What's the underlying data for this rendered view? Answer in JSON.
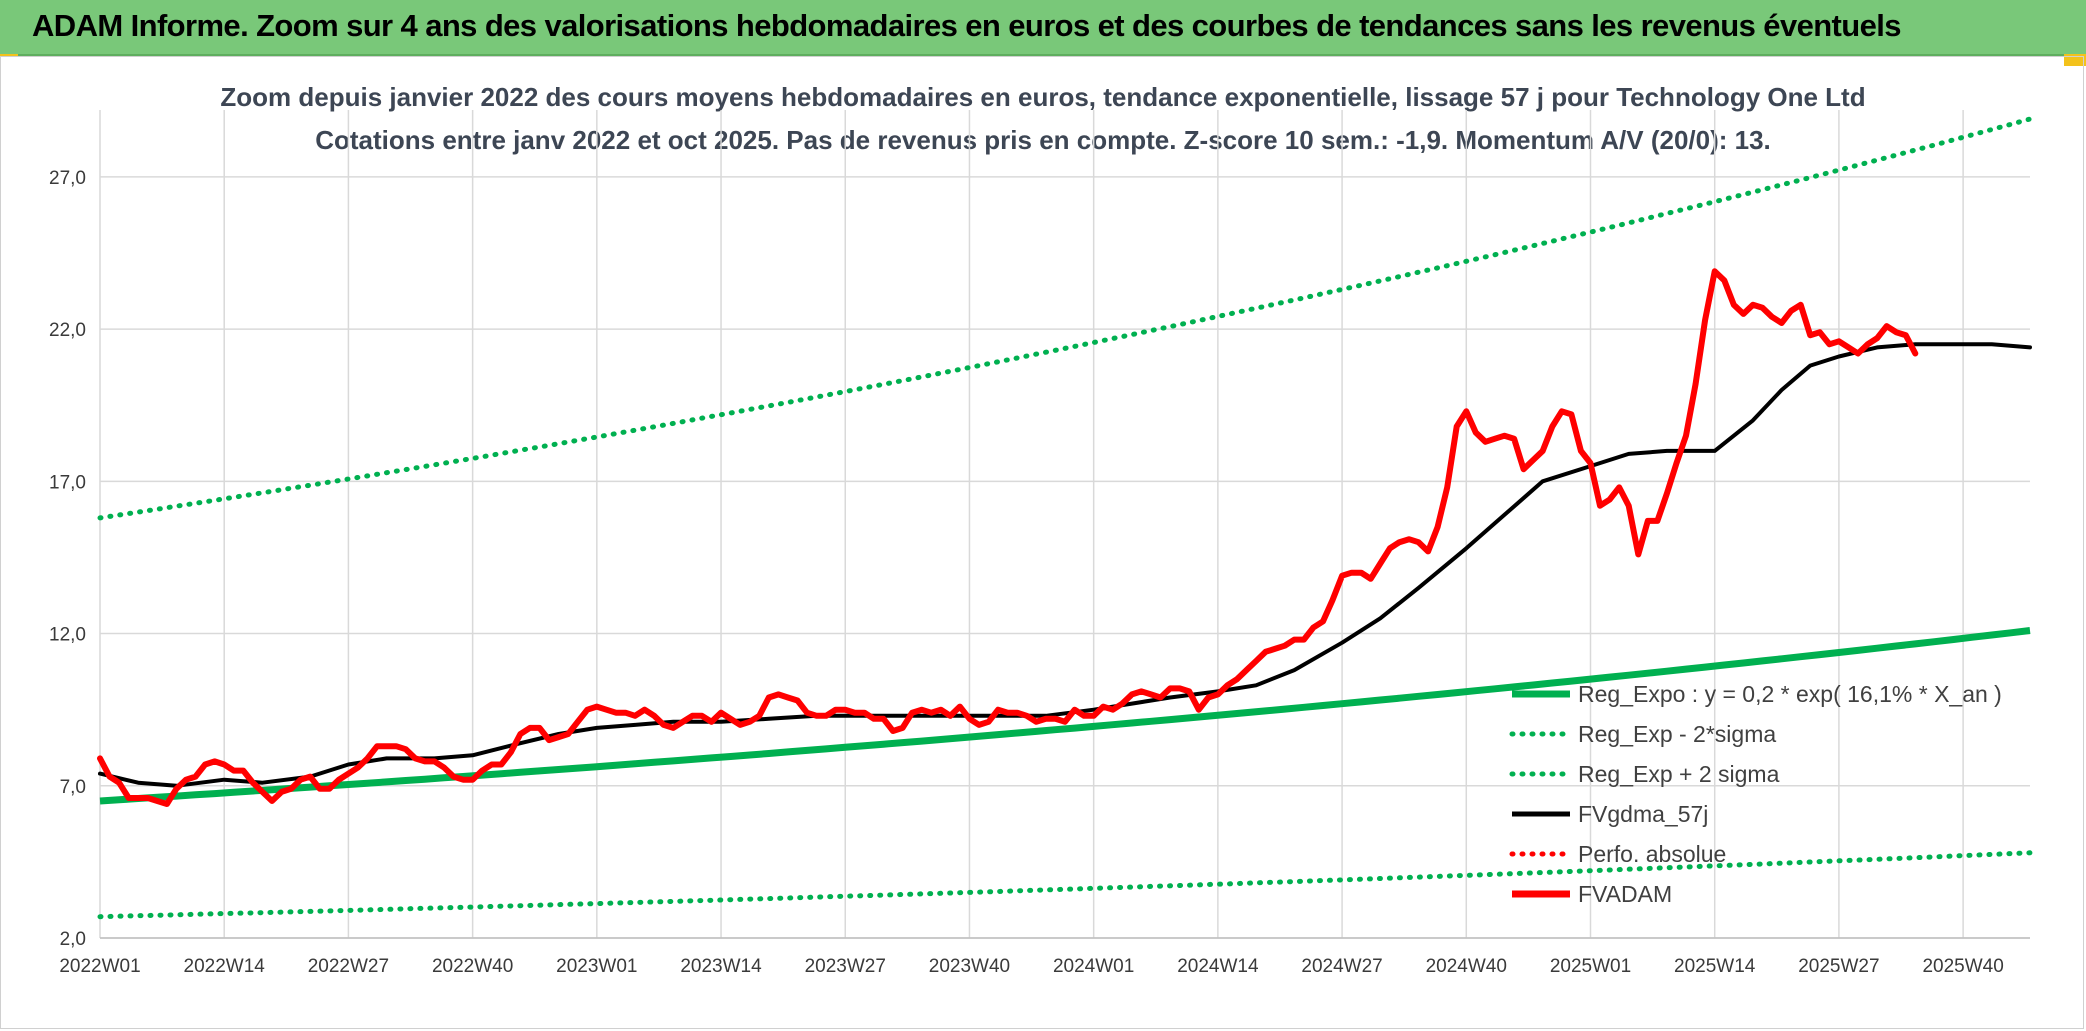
{
  "banner": {
    "title": "ADAM Informe. Zoom sur 4 ans des valorisations hebdomadaires en euros et des courbes de tendances sans les revenus éventuels"
  },
  "colors": {
    "banner_bg": "#79c879",
    "trend": "#00b050",
    "price": "#ff0000",
    "moving_avg": "#000000"
  },
  "chart_data": {
    "type": "line",
    "subtitle_line1": "Zoom depuis janvier 2022 des cours moyens hebdomadaires en euros, tendance exponentielle, lissage 57 j pour Technology One Ltd",
    "subtitle_line2": "Cotations entre janv 2022 et oct 2025. Pas de revenus pris en compte. Z-score 10 sem.: -1,9. Momentum A/V (20/0): 13.",
    "ylim": [
      2.0,
      29.0
    ],
    "y_ticks": [
      "2,0",
      "7,0",
      "12,0",
      "17,0",
      "22,0",
      "27,0"
    ],
    "y_tick_values": [
      2,
      7,
      12,
      17,
      22,
      27
    ],
    "x_tick_labels": [
      "2022W01",
      "2022W14",
      "2022W27",
      "2022W40",
      "2023W01",
      "2023W14",
      "2023W27",
      "2023W40",
      "2024W01",
      "2024W14",
      "2024W27",
      "2024W40",
      "2025W01",
      "2025W14",
      "2025W27",
      "2025W40"
    ],
    "x_tick_weeks": [
      0,
      13,
      26,
      39,
      52,
      65,
      78,
      91,
      104,
      117,
      130,
      143,
      156,
      169,
      182,
      195
    ],
    "x_range_weeks": [
      0,
      202
    ],
    "grid": true,
    "legend_position": "right-lower",
    "legend": [
      {
        "label": "Reg_Expo : y = 0,2 * exp( 16,1% *  X_an )",
        "style": "thick-solid",
        "color": "#00b050"
      },
      {
        "label": "Reg_Exp - 2*sigma",
        "style": "dotted",
        "color": "#00b050"
      },
      {
        "label": "Reg_Exp + 2 sigma",
        "style": "dotted",
        "color": "#00b050"
      },
      {
        "label": "FVgdma_57j",
        "style": "solid",
        "color": "#000000"
      },
      {
        "label": "Perfo. absolue",
        "style": "dotted",
        "color": "#ff0000"
      },
      {
        "label": "FVADAM",
        "style": "thick-solid",
        "color": "#ff0000"
      }
    ],
    "series": [
      {
        "name": "Reg_Expo : y = 0,2 * exp( 16,1% *  X_an )",
        "points": [
          [
            0,
            6.5
          ],
          [
            202,
            12.1
          ]
        ]
      },
      {
        "name": "Reg_Exp - 2*sigma",
        "points": [
          [
            0,
            2.7
          ],
          [
            202,
            4.8
          ]
        ]
      },
      {
        "name": "Reg_Exp + 2 sigma",
        "points": [
          [
            0,
            15.8
          ],
          [
            202,
            28.9
          ]
        ]
      },
      {
        "name": "FVgdma_57j",
        "points": [
          [
            0,
            7.4
          ],
          [
            4,
            7.1
          ],
          [
            8,
            7.0
          ],
          [
            13,
            7.2
          ],
          [
            17,
            7.1
          ],
          [
            22,
            7.3
          ],
          [
            26,
            7.7
          ],
          [
            30,
            7.9
          ],
          [
            35,
            7.9
          ],
          [
            39,
            8.0
          ],
          [
            44,
            8.4
          ],
          [
            48,
            8.7
          ],
          [
            52,
            8.9
          ],
          [
            56,
            9.0
          ],
          [
            60,
            9.1
          ],
          [
            65,
            9.1
          ],
          [
            70,
            9.2
          ],
          [
            75,
            9.3
          ],
          [
            78,
            9.3
          ],
          [
            82,
            9.3
          ],
          [
            86,
            9.3
          ],
          [
            91,
            9.3
          ],
          [
            95,
            9.3
          ],
          [
            99,
            9.3
          ],
          [
            104,
            9.5
          ],
          [
            108,
            9.7
          ],
          [
            112,
            9.9
          ],
          [
            117,
            10.1
          ],
          [
            121,
            10.3
          ],
          [
            125,
            10.8
          ],
          [
            130,
            11.7
          ],
          [
            134,
            12.5
          ],
          [
            138,
            13.5
          ],
          [
            143,
            14.8
          ],
          [
            147,
            15.9
          ],
          [
            151,
            17.0
          ],
          [
            156,
            17.5
          ],
          [
            160,
            17.9
          ],
          [
            164,
            18.0
          ],
          [
            169,
            18.0
          ],
          [
            173,
            19.0
          ],
          [
            176,
            20.0
          ],
          [
            179,
            20.8
          ],
          [
            182,
            21.1
          ],
          [
            186,
            21.4
          ],
          [
            190,
            21.5
          ],
          [
            194,
            21.5
          ],
          [
            198,
            21.5
          ],
          [
            202,
            21.4
          ]
        ]
      },
      {
        "name": "FVADAM",
        "points": [
          [
            0,
            7.9
          ],
          [
            1,
            7.3
          ],
          [
            2,
            7.1
          ],
          [
            3,
            6.6
          ],
          [
            4,
            6.6
          ],
          [
            5,
            6.6
          ],
          [
            6,
            6.5
          ],
          [
            7,
            6.4
          ],
          [
            8,
            6.9
          ],
          [
            9,
            7.2
          ],
          [
            10,
            7.3
          ],
          [
            11,
            7.7
          ],
          [
            12,
            7.8
          ],
          [
            13,
            7.7
          ],
          [
            14,
            7.5
          ],
          [
            15,
            7.5
          ],
          [
            16,
            7.1
          ],
          [
            17,
            6.8
          ],
          [
            18,
            6.5
          ],
          [
            19,
            6.8
          ],
          [
            20,
            6.9
          ],
          [
            21,
            7.2
          ],
          [
            22,
            7.3
          ],
          [
            23,
            6.9
          ],
          [
            24,
            6.9
          ],
          [
            25,
            7.2
          ],
          [
            26,
            7.4
          ],
          [
            27,
            7.6
          ],
          [
            28,
            7.9
          ],
          [
            29,
            8.3
          ],
          [
            30,
            8.3
          ],
          [
            31,
            8.3
          ],
          [
            32,
            8.2
          ],
          [
            33,
            7.9
          ],
          [
            34,
            7.8
          ],
          [
            35,
            7.8
          ],
          [
            36,
            7.6
          ],
          [
            37,
            7.3
          ],
          [
            38,
            7.2
          ],
          [
            39,
            7.2
          ],
          [
            40,
            7.5
          ],
          [
            41,
            7.7
          ],
          [
            42,
            7.7
          ],
          [
            43,
            8.1
          ],
          [
            44,
            8.7
          ],
          [
            45,
            8.9
          ],
          [
            46,
            8.9
          ],
          [
            47,
            8.5
          ],
          [
            48,
            8.6
          ],
          [
            49,
            8.7
          ],
          [
            50,
            9.1
          ],
          [
            51,
            9.5
          ],
          [
            52,
            9.6
          ],
          [
            53,
            9.5
          ],
          [
            54,
            9.4
          ],
          [
            55,
            9.4
          ],
          [
            56,
            9.3
          ],
          [
            57,
            9.5
          ],
          [
            58,
            9.3
          ],
          [
            59,
            9.0
          ],
          [
            60,
            8.9
          ],
          [
            61,
            9.1
          ],
          [
            62,
            9.3
          ],
          [
            63,
            9.3
          ],
          [
            64,
            9.1
          ],
          [
            65,
            9.4
          ],
          [
            66,
            9.2
          ],
          [
            67,
            9.0
          ],
          [
            68,
            9.1
          ],
          [
            69,
            9.3
          ],
          [
            70,
            9.9
          ],
          [
            71,
            10.0
          ],
          [
            72,
            9.9
          ],
          [
            73,
            9.8
          ],
          [
            74,
            9.4
          ],
          [
            75,
            9.3
          ],
          [
            76,
            9.3
          ],
          [
            77,
            9.5
          ],
          [
            78,
            9.5
          ],
          [
            79,
            9.4
          ],
          [
            80,
            9.4
          ],
          [
            81,
            9.2
          ],
          [
            82,
            9.2
          ],
          [
            83,
            8.8
          ],
          [
            84,
            8.9
          ],
          [
            85,
            9.4
          ],
          [
            86,
            9.5
          ],
          [
            87,
            9.4
          ],
          [
            88,
            9.5
          ],
          [
            89,
            9.3
          ],
          [
            90,
            9.6
          ],
          [
            91,
            9.2
          ],
          [
            92,
            9.0
          ],
          [
            93,
            9.1
          ],
          [
            94,
            9.5
          ],
          [
            95,
            9.4
          ],
          [
            96,
            9.4
          ],
          [
            97,
            9.3
          ],
          [
            98,
            9.1
          ],
          [
            99,
            9.2
          ],
          [
            100,
            9.2
          ],
          [
            101,
            9.1
          ],
          [
            102,
            9.5
          ],
          [
            103,
            9.3
          ],
          [
            104,
            9.3
          ],
          [
            105,
            9.6
          ],
          [
            106,
            9.5
          ],
          [
            107,
            9.7
          ],
          [
            108,
            10.0
          ],
          [
            109,
            10.1
          ],
          [
            110,
            10.0
          ],
          [
            111,
            9.9
          ],
          [
            112,
            10.2
          ],
          [
            113,
            10.2
          ],
          [
            114,
            10.1
          ],
          [
            115,
            9.5
          ],
          [
            116,
            9.9
          ],
          [
            117,
            10.0
          ],
          [
            118,
            10.3
          ],
          [
            119,
            10.5
          ],
          [
            120,
            10.8
          ],
          [
            121,
            11.1
          ],
          [
            122,
            11.4
          ],
          [
            123,
            11.5
          ],
          [
            124,
            11.6
          ],
          [
            125,
            11.8
          ],
          [
            126,
            11.8
          ],
          [
            127,
            12.2
          ],
          [
            128,
            12.4
          ],
          [
            129,
            13.1
          ],
          [
            130,
            13.9
          ],
          [
            131,
            14.0
          ],
          [
            132,
            14.0
          ],
          [
            133,
            13.8
          ],
          [
            134,
            14.3
          ],
          [
            135,
            14.8
          ],
          [
            136,
            15.0
          ],
          [
            137,
            15.1
          ],
          [
            138,
            15.0
          ],
          [
            139,
            14.7
          ],
          [
            140,
            15.5
          ],
          [
            141,
            16.8
          ],
          [
            142,
            18.8
          ],
          [
            143,
            19.3
          ],
          [
            144,
            18.6
          ],
          [
            145,
            18.3
          ],
          [
            146,
            18.4
          ],
          [
            147,
            18.5
          ],
          [
            148,
            18.4
          ],
          [
            149,
            17.4
          ],
          [
            150,
            17.7
          ],
          [
            151,
            18.0
          ],
          [
            152,
            18.8
          ],
          [
            153,
            19.3
          ],
          [
            154,
            19.2
          ],
          [
            155,
            18.0
          ],
          [
            156,
            17.6
          ],
          [
            157,
            16.2
          ],
          [
            158,
            16.4
          ],
          [
            159,
            16.8
          ],
          [
            160,
            16.2
          ],
          [
            161,
            14.6
          ],
          [
            162,
            15.7
          ],
          [
            163,
            15.7
          ],
          [
            164,
            16.6
          ],
          [
            165,
            17.6
          ],
          [
            166,
            18.5
          ],
          [
            167,
            20.2
          ],
          [
            168,
            22.3
          ],
          [
            169,
            23.9
          ],
          [
            170,
            23.6
          ],
          [
            171,
            22.8
          ],
          [
            172,
            22.5
          ],
          [
            173,
            22.8
          ],
          [
            174,
            22.7
          ],
          [
            175,
            22.4
          ],
          [
            176,
            22.2
          ],
          [
            177,
            22.6
          ],
          [
            178,
            22.8
          ],
          [
            179,
            21.8
          ],
          [
            180,
            21.9
          ],
          [
            181,
            21.5
          ],
          [
            182,
            21.6
          ],
          [
            183,
            21.4
          ],
          [
            184,
            21.2
          ],
          [
            185,
            21.5
          ],
          [
            186,
            21.7
          ],
          [
            187,
            22.1
          ],
          [
            188,
            21.9
          ],
          [
            189,
            21.8
          ],
          [
            190,
            21.2
          ]
        ]
      }
    ]
  }
}
